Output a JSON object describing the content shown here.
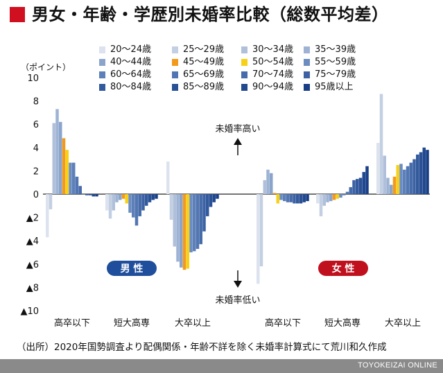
{
  "title": "男女・年齢・学歴別未婚率比較（総数平均差）",
  "source": "（出所）2020年国勢調査より配偶関係・年齢不詳を除く未婚率計算式にて荒川和久作成",
  "brand": "TOYOKEIZAI ONLINE",
  "colors": {
    "title_mark": "#d01020",
    "male_badge": "#1f4e9c",
    "female_badge": "#c0101e",
    "bar_45_49": "#f39a1c",
    "bar_50_54": "#f7d117"
  },
  "chart_data": {
    "type": "bar",
    "ylabel": "（ポイント）",
    "ylim": [
      -10,
      10
    ],
    "yticks": [
      "10",
      "8",
      "6",
      "4",
      "2",
      "0",
      "▲2",
      "▲4",
      "▲6",
      "▲8",
      "▲10"
    ],
    "ytick_values": [
      10,
      8,
      6,
      4,
      2,
      0,
      -2,
      -4,
      -6,
      -8,
      -10
    ],
    "legend_position": "top",
    "grid": false,
    "age_groups": [
      "20～24歳",
      "25～29歳",
      "30～34歳",
      "35～39歳",
      "40～44歳",
      "45～49歳",
      "50～54歳",
      "55～59歳",
      "60～64歳",
      "65～69歳",
      "70～74歳",
      "75～79歳",
      "80～84歳",
      "85～89歳",
      "90～94歳",
      "95歳以上"
    ],
    "series_colors": [
      "#dce3ee",
      "#c3cfe2",
      "#b0c0da",
      "#9eb3d4",
      "#8aa4cc",
      "#f39a1c",
      "#f7d117",
      "#6a8cc0",
      "#5d80b8",
      "#5276b1",
      "#476caa",
      "#3d62a4",
      "#335a9d",
      "#2a5196",
      "#21498f",
      "#183f86"
    ],
    "groups": [
      {
        "sex": "男性",
        "education": "高卒以下",
        "values": [
          -3.7,
          -1.3,
          6.1,
          7.3,
          6.2,
          4.8,
          3.8,
          2.7,
          2.7,
          1.5,
          0.7,
          0.0,
          -0.1,
          -0.1,
          -0.2,
          -0.2
        ]
      },
      {
        "sex": "男性",
        "education": "短大高専",
        "values": [
          -1.4,
          -2.1,
          -1.4,
          -0.7,
          -0.5,
          -0.4,
          -0.8,
          -1.6,
          -2.0,
          -2.7,
          -1.9,
          -1.4,
          -1.0,
          -0.7,
          -0.5,
          -0.4
        ]
      },
      {
        "sex": "男性",
        "education": "大卒以上",
        "values": [
          2.8,
          -2.2,
          -4.5,
          -5.8,
          -6.3,
          -6.5,
          -6.4,
          -5.0,
          -4.9,
          -4.7,
          -4.3,
          -3.2,
          -1.9,
          -1.1,
          -0.7,
          -0.4
        ]
      },
      {
        "sex": "女性",
        "education": "高卒以下",
        "values": [
          -7.7,
          -6.2,
          1.2,
          2.1,
          1.8,
          0.1,
          -0.8,
          -0.5,
          -0.6,
          -0.7,
          -0.7,
          -0.8,
          -0.8,
          -0.8,
          -0.7,
          -0.6
        ]
      },
      {
        "sex": "女性",
        "education": "短大高専",
        "values": [
          -0.8,
          -1.9,
          -1.0,
          -0.7,
          -0.6,
          -0.5,
          -0.4,
          -0.3,
          -0.1,
          0.2,
          0.6,
          1.2,
          1.3,
          1.4,
          1.9,
          2.4
        ]
      },
      {
        "sex": "女性",
        "education": "大卒以上",
        "values": [
          4.4,
          8.6,
          3.3,
          1.4,
          0.8,
          1.5,
          2.5,
          2.6,
          2.1,
          2.4,
          2.7,
          3.0,
          3.4,
          3.6,
          4.0,
          3.8
        ]
      }
    ],
    "annotations": {
      "up": "未婚率高い",
      "down": "未婚率低い",
      "male": "男 性",
      "female": "女 性"
    }
  }
}
